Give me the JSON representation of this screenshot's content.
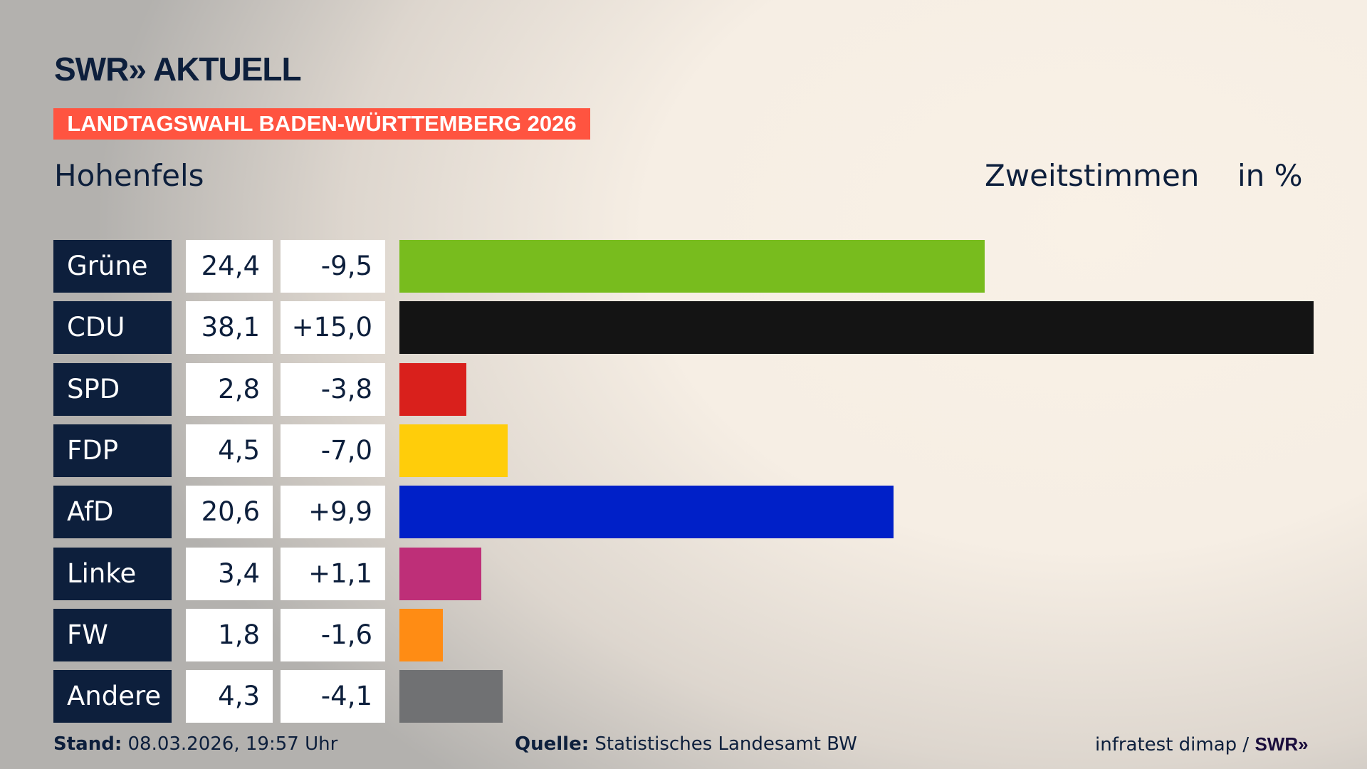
{
  "header": {
    "logo": "SWR» AKTUELL",
    "banner": "LANDTAGSWAHL BADEN-WÜRTTEMBERG 2026",
    "place": "Hohenfels",
    "metric": "Zweitstimmen",
    "unit": "in %"
  },
  "chart_data": {
    "type": "bar",
    "orientation": "horizontal",
    "categories": [
      "Grüne",
      "CDU",
      "SPD",
      "FDP",
      "AfD",
      "Linke",
      "FW",
      "Andere"
    ],
    "values": [
      24.4,
      38.1,
      2.8,
      4.5,
      20.6,
      3.4,
      1.8,
      4.3
    ],
    "value_labels": [
      "24,4",
      "38,1",
      "2,8",
      "4,5",
      "20,6",
      "3,4",
      "1,8",
      "4,3"
    ],
    "changes": [
      -9.5,
      15.0,
      -3.8,
      -7.0,
      9.9,
      1.1,
      -1.6,
      -4.1
    ],
    "change_labels": [
      "-9,5",
      "+15,0",
      "-3,8",
      "-7,0",
      "+9,9",
      "+1,1",
      "-1,6",
      "-4,1"
    ],
    "colors": [
      "#78bc1e",
      "#141414",
      "#d9201c",
      "#ffcd0a",
      "#0020c8",
      "#be2f78",
      "#ff8c14",
      "#707173"
    ],
    "xlim": [
      0,
      38.1
    ]
  },
  "footer": {
    "stand_label": "Stand:",
    "stand_value": "08.03.2026, 19:57 Uhr",
    "source_label": "Quelle:",
    "source_value": "Statistisches Landesamt BW",
    "credit": "infratest dimap /",
    "credit_logo": "SWR»"
  }
}
